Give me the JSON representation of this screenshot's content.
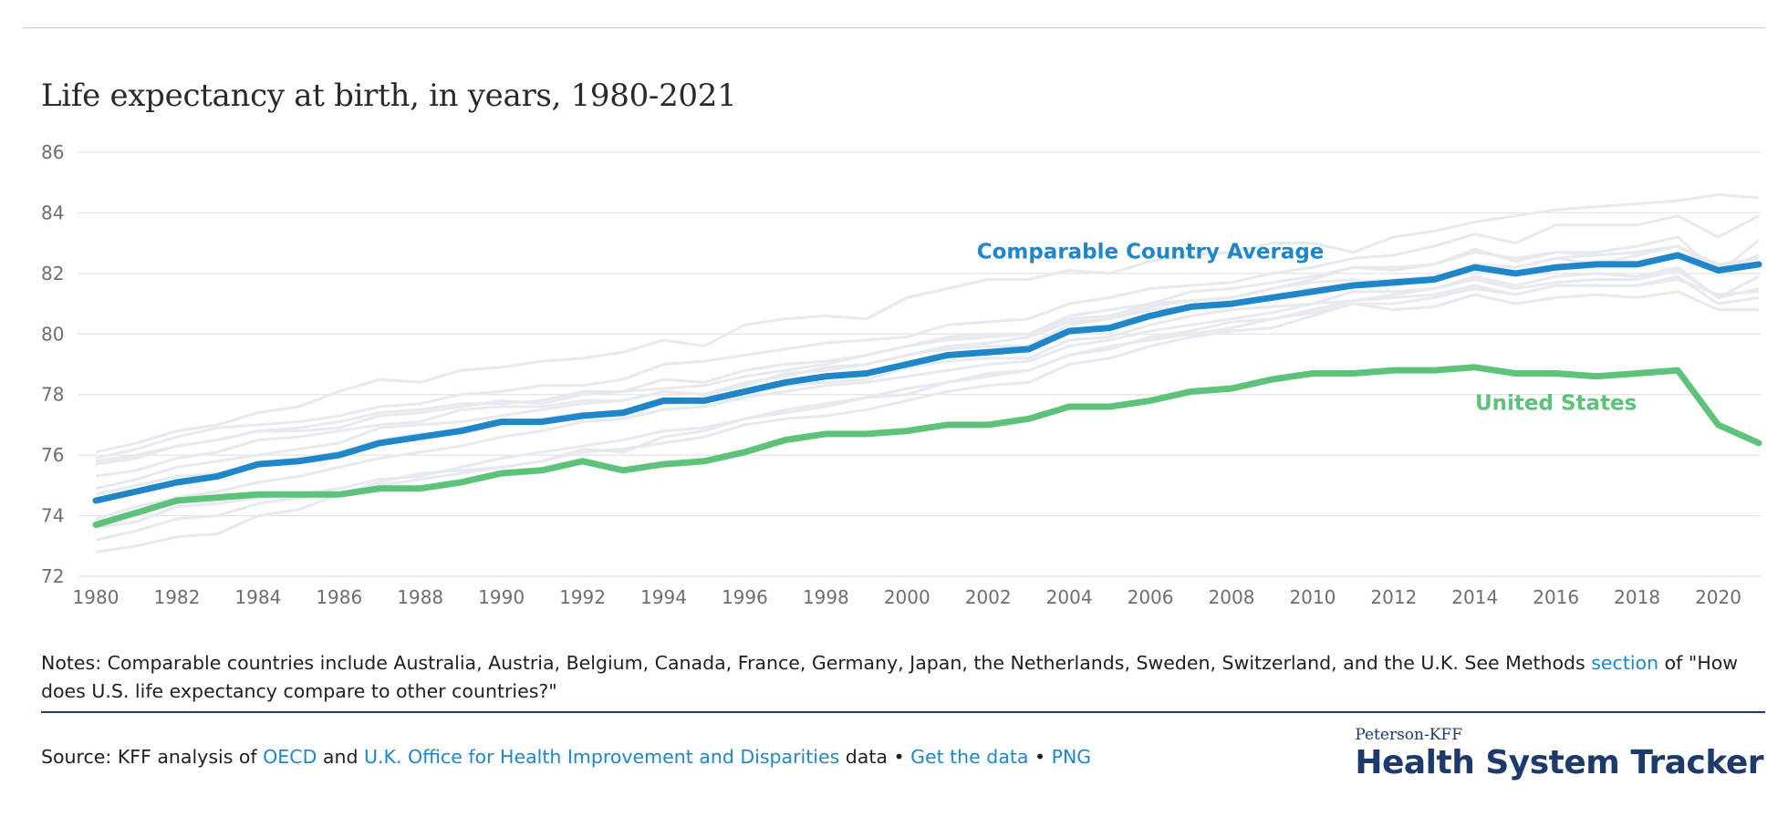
{
  "title": "Life expectancy at birth, in years, 1980-2021",
  "notes": {
    "text_before": "Notes: Comparable countries include Australia, Austria, Belgium, Canada, France, Germany, Japan, the Netherlands, Sweden, Switzerland, and the U.K. See Methods ",
    "link": "section",
    "text_after": " of \"How does U.S. life expectancy compare to other countries?\""
  },
  "source": {
    "prefix": "Source: KFF analysis of ",
    "link_oecd": "OECD",
    "and": " and ",
    "link_ohid": "U.K. Office for Health Improvement and Disparities",
    "data_word": " data",
    "sep1": " • ",
    "link_get_data": "Get the data",
    "sep2": " • ",
    "link_png": "PNG"
  },
  "brand": {
    "top": "Peterson-KFF",
    "main": "Health System Tracker"
  },
  "colors": {
    "comparable": "#1f86c9",
    "us": "#5dc27a",
    "background_lines": "#e6eaee",
    "grid": "#e3e3e3",
    "brand": "#1d3a6b",
    "link": "#1f86c9"
  },
  "chart_data": {
    "type": "line",
    "title": "Life expectancy at birth, in years, 1980-2021",
    "xlabel": "",
    "ylabel": "",
    "ylim": [
      72,
      86
    ],
    "xlim": [
      1980,
      2021
    ],
    "yticks": [
      72,
      74,
      76,
      78,
      80,
      82,
      84,
      86
    ],
    "xticks": [
      1980,
      1982,
      1984,
      1986,
      1988,
      1990,
      1992,
      1994,
      1996,
      1998,
      2000,
      2002,
      2004,
      2006,
      2008,
      2010,
      2012,
      2014,
      2016,
      2018,
      2020
    ],
    "grid": true,
    "x": [
      1980,
      1981,
      1982,
      1983,
      1984,
      1985,
      1986,
      1987,
      1988,
      1989,
      1990,
      1991,
      1992,
      1993,
      1994,
      1995,
      1996,
      1997,
      1998,
      1999,
      2000,
      2001,
      2002,
      2003,
      2004,
      2005,
      2006,
      2007,
      2008,
      2009,
      2010,
      2011,
      2012,
      2013,
      2014,
      2015,
      2016,
      2017,
      2018,
      2019,
      2020,
      2021
    ],
    "series": [
      {
        "name": "Comparable Country Average",
        "values": [
          74.5,
          74.8,
          75.1,
          75.3,
          75.7,
          75.8,
          76.0,
          76.4,
          76.6,
          76.8,
          77.1,
          77.1,
          77.3,
          77.4,
          77.8,
          77.8,
          78.1,
          78.4,
          78.6,
          78.7,
          79.0,
          79.3,
          79.4,
          79.5,
          80.1,
          80.2,
          80.6,
          80.9,
          81.0,
          81.2,
          81.4,
          81.6,
          81.7,
          81.8,
          82.2,
          82.0,
          82.2,
          82.3,
          82.3,
          82.6,
          82.1,
          82.3
        ]
      },
      {
        "name": "United States",
        "values": [
          73.7,
          74.1,
          74.5,
          74.6,
          74.7,
          74.7,
          74.7,
          74.9,
          74.9,
          75.1,
          75.4,
          75.5,
          75.8,
          75.5,
          75.7,
          75.8,
          76.1,
          76.5,
          76.7,
          76.7,
          76.8,
          77.0,
          77.0,
          77.2,
          77.6,
          77.6,
          77.8,
          78.1,
          78.2,
          78.5,
          78.7,
          78.7,
          78.8,
          78.8,
          78.9,
          78.7,
          78.7,
          78.6,
          78.7,
          78.8,
          77.0,
          76.4
        ]
      }
    ],
    "background_series": [
      {
        "values": [
          76.1,
          76.4,
          76.8,
          77.0,
          77.4,
          77.6,
          78.1,
          78.5,
          78.4,
          78.8,
          78.9,
          79.1,
          79.2,
          79.4,
          79.8,
          79.6,
          80.3,
          80.5,
          80.6,
          80.5,
          81.2,
          81.5,
          81.8,
          81.8,
          82.1,
          82.0,
          82.4,
          82.6,
          82.7,
          83.0,
          83.0,
          82.7,
          83.2,
          83.4,
          83.7,
          83.9,
          84.1,
          84.2,
          84.3,
          84.4,
          84.6,
          84.5
        ]
      },
      {
        "values": [
          75.9,
          76.2,
          76.6,
          76.9,
          77.0,
          77.1,
          77.3,
          77.6,
          77.7,
          78.0,
          78.1,
          78.3,
          78.3,
          78.5,
          79.0,
          79.1,
          79.3,
          79.5,
          79.7,
          79.8,
          79.9,
          80.3,
          80.4,
          80.5,
          81.0,
          81.2,
          81.5,
          81.6,
          81.7,
          82.0,
          82.2,
          82.5,
          82.6,
          82.9,
          83.3,
          83.0,
          83.6,
          83.6,
          83.6,
          83.9,
          83.2,
          83.9
        ]
      },
      {
        "values": [
          75.8,
          76.0,
          76.3,
          76.5,
          76.8,
          76.8,
          76.9,
          77.3,
          77.4,
          77.6,
          77.8,
          77.7,
          78.0,
          78.1,
          78.2,
          78.3,
          78.6,
          78.8,
          79.0,
          79.3,
          79.6,
          79.8,
          79.9,
          80.0,
          80.6,
          80.8,
          81.0,
          81.4,
          81.5,
          81.7,
          81.9,
          82.2,
          82.2,
          82.3,
          82.7,
          82.5,
          82.7,
          82.7,
          82.9,
          83.2,
          82.0,
          83.1
        ]
      },
      {
        "values": [
          75.7,
          75.9,
          76.3,
          76.5,
          76.8,
          76.9,
          77.1,
          77.4,
          77.5,
          77.7,
          77.7,
          77.8,
          78.1,
          78.1,
          78.5,
          78.4,
          78.8,
          79.0,
          79.1,
          79.3,
          79.6,
          79.9,
          80.0,
          80.0,
          80.5,
          80.6,
          81.0,
          81.1,
          81.2,
          81.5,
          81.7,
          81.8,
          81.6,
          81.8,
          82.3,
          82.2,
          82.5,
          82.6,
          82.7,
          82.9,
          82.3,
          82.5
        ]
      },
      {
        "values": [
          75.3,
          75.5,
          75.9,
          76.1,
          76.5,
          76.6,
          76.8,
          77.0,
          77.1,
          77.5,
          77.6,
          77.6,
          77.8,
          77.8,
          78.1,
          78.0,
          78.3,
          78.7,
          78.8,
          79.0,
          79.3,
          79.5,
          79.6,
          79.6,
          80.3,
          80.5,
          80.9,
          81.1,
          81.2,
          81.5,
          81.8,
          82.2,
          82.1,
          82.3,
          82.8,
          82.4,
          82.7,
          82.6,
          82.7,
          82.9,
          82.2,
          82.5
        ]
      },
      {
        "values": [
          74.9,
          75.2,
          75.6,
          75.8,
          76.0,
          76.2,
          76.4,
          76.9,
          77.0,
          77.1,
          77.3,
          77.5,
          77.7,
          77.8,
          78.1,
          78.0,
          78.4,
          78.6,
          78.9,
          79.0,
          79.3,
          79.6,
          79.7,
          79.9,
          80.4,
          80.5,
          80.8,
          80.9,
          81.0,
          81.2,
          81.5,
          81.7,
          81.8,
          81.9,
          82.3,
          82.2,
          82.5,
          82.3,
          82.6,
          82.9,
          82.1,
          82.6
        ]
      },
      {
        "values": [
          74.7,
          75.0,
          75.3,
          75.4,
          75.7,
          75.9,
          76.1,
          76.5,
          76.7,
          76.7,
          77.0,
          77.2,
          77.4,
          77.3,
          77.7,
          77.8,
          78.1,
          78.3,
          78.4,
          78.5,
          78.9,
          79.1,
          79.2,
          79.2,
          79.8,
          79.9,
          80.3,
          80.6,
          80.8,
          80.9,
          81.0,
          81.4,
          81.4,
          81.5,
          81.9,
          81.6,
          81.9,
          82.0,
          81.9,
          82.2,
          81.2,
          81.9
        ]
      },
      {
        "values": [
          73.9,
          74.3,
          74.6,
          74.8,
          75.1,
          75.3,
          75.6,
          75.9,
          76.1,
          76.3,
          76.6,
          76.8,
          77.1,
          77.2,
          77.5,
          77.6,
          77.9,
          78.1,
          78.3,
          78.4,
          78.6,
          78.8,
          79.0,
          79.1,
          79.6,
          79.8,
          80.1,
          80.3,
          80.5,
          80.7,
          81.0,
          81.1,
          81.3,
          81.5,
          81.8,
          81.5,
          81.7,
          81.8,
          81.8,
          82.1,
          81.2,
          81.5
        ]
      },
      {
        "values": [
          73.6,
          73.8,
          74.3,
          74.4,
          74.6,
          74.7,
          74.9,
          75.2,
          75.3,
          75.6,
          75.9,
          76.1,
          76.3,
          76.5,
          76.8,
          76.9,
          77.2,
          77.5,
          77.7,
          77.9,
          78.2,
          78.4,
          78.6,
          78.8,
          79.3,
          79.5,
          79.9,
          80.1,
          80.4,
          80.5,
          80.8,
          81.1,
          81.2,
          81.3,
          81.6,
          81.3,
          81.6,
          81.6,
          81.6,
          81.9,
          81.0,
          81.2
        ]
      },
      {
        "values": [
          73.2,
          73.5,
          73.9,
          74.0,
          74.4,
          74.6,
          74.7,
          75.0,
          75.2,
          75.4,
          75.6,
          75.8,
          76.1,
          76.2,
          76.4,
          76.6,
          77.0,
          77.2,
          77.3,
          77.5,
          77.8,
          78.1,
          78.3,
          78.4,
          79.0,
          79.2,
          79.6,
          79.9,
          80.1,
          80.2,
          80.6,
          81.0,
          80.8,
          80.9,
          81.3,
          81.0,
          81.2,
          81.3,
          81.2,
          81.4,
          80.8,
          80.8
        ]
      },
      {
        "values": [
          72.8,
          73.0,
          73.3,
          73.4,
          74.0,
          74.2,
          74.7,
          75.1,
          75.4,
          75.5,
          75.6,
          75.8,
          76.2,
          76.1,
          76.6,
          76.8,
          77.2,
          77.4,
          77.6,
          77.9,
          78.0,
          78.4,
          78.7,
          78.8,
          79.3,
          79.6,
          79.8,
          80.0,
          80.2,
          80.5,
          80.7,
          81.0,
          81.0,
          81.2,
          81.5,
          81.3,
          81.6,
          81.6,
          81.6,
          81.8,
          81.3,
          81.4
        ]
      }
    ],
    "labels": [
      {
        "text": "Comparable Country Average",
        "x": 2006,
        "y": 82.5
      },
      {
        "text": "United States",
        "x": 2016,
        "y": 77.5
      }
    ]
  }
}
